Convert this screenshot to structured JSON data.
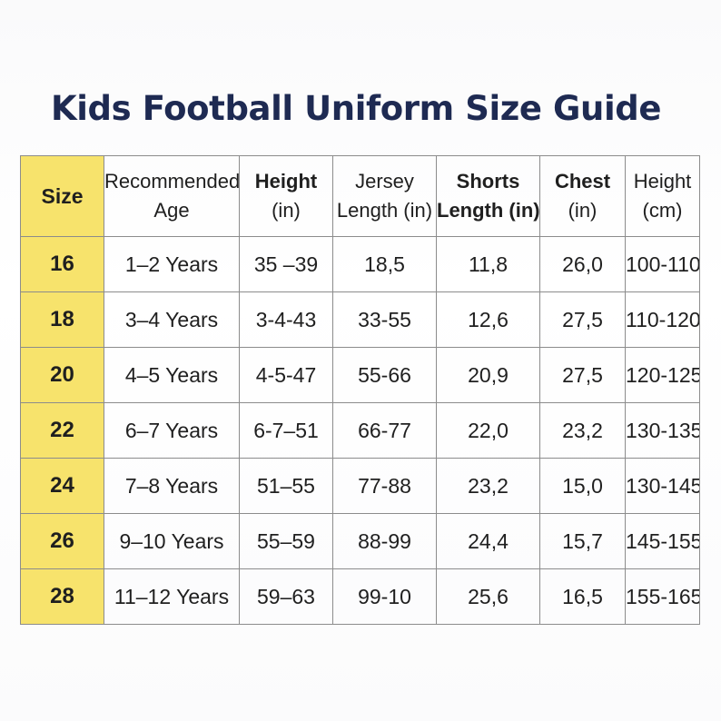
{
  "title": "Kids Football Uniform Size Guide",
  "colors": {
    "size_column": "#f7e36c",
    "title": "#1e2a52",
    "border": "#8c8c8c"
  },
  "table": {
    "headers": [
      {
        "lines": [
          "Size"
        ]
      },
      {
        "lines": [
          "Recommended",
          "Age"
        ]
      },
      {
        "lines": [
          "Height",
          "(in)"
        ]
      },
      {
        "lines": [
          "Jersey",
          "Length (in)"
        ]
      },
      {
        "lines": [
          "Shorts",
          "Length (in)"
        ]
      },
      {
        "lines": [
          "Chest",
          "(in)"
        ]
      },
      {
        "lines": [
          "Height",
          "(cm)"
        ]
      }
    ],
    "rows": [
      [
        "16",
        "1–2 Years",
        "35 –39",
        "18,5",
        "11,8",
        "26,0",
        "100-110"
      ],
      [
        "18",
        "3–4 Years",
        "3-4-43",
        "33-55",
        "12,6",
        "27,5",
        "110-120"
      ],
      [
        "20",
        "4–5 Years",
        "4-5-47",
        "55-66",
        "20,9",
        "27,5",
        "120-125"
      ],
      [
        "22",
        "6–7 Years",
        "6-7–51",
        "66-77",
        "22,0",
        "23,2",
        "130-135"
      ],
      [
        "24",
        "7–8 Years",
        "51–55",
        "77-88",
        "23,2",
        "15,0",
        "130-145"
      ],
      [
        "26",
        "9–10 Years",
        "55–59",
        "88-99",
        "24,4",
        "15,7",
        "145-155"
      ],
      [
        "28",
        "11–12 Years",
        "59–63",
        "99-10",
        "25,6",
        "16,5",
        "155-165"
      ]
    ]
  }
}
